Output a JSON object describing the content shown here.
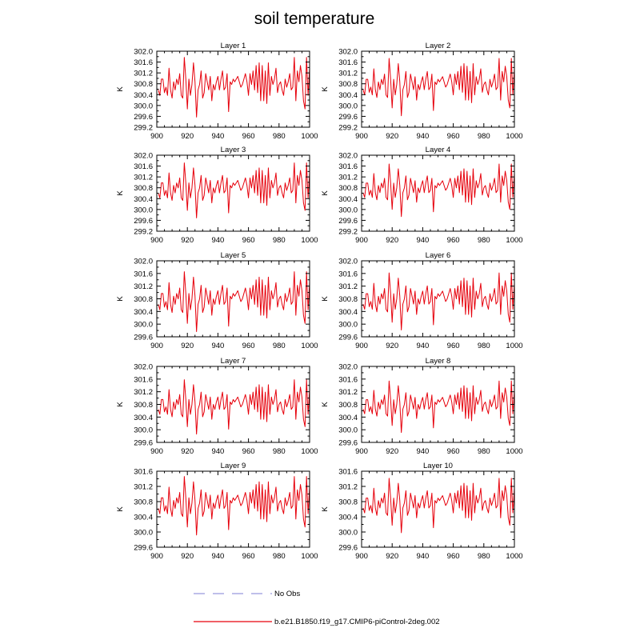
{
  "figure": {
    "title": "soil temperature",
    "legend": [
      {
        "label": "No Obs",
        "color": "#9999dd",
        "style": "dashed"
      },
      {
        "label": "b.e21.B1850.f19_g17.CMIP6-piControl-2deg.002",
        "color": "#e6000b",
        "style": "solid"
      }
    ]
  },
  "chart_data": {
    "type": "line",
    "xlim": [
      900,
      1000
    ],
    "xticks": [
      900,
      920,
      940,
      960,
      980,
      1000
    ],
    "ylabel": "K",
    "line_color": "#e6000b",
    "x": [
      901,
      902,
      903,
      904,
      905,
      906,
      907,
      908,
      909,
      910,
      911,
      912,
      913,
      914,
      915,
      916,
      917,
      918,
      919,
      920,
      921,
      922,
      923,
      924,
      925,
      926,
      927,
      928,
      929,
      930,
      931,
      932,
      933,
      934,
      935,
      936,
      937,
      938,
      939,
      940,
      941,
      942,
      943,
      944,
      945,
      946,
      947,
      948,
      949,
      950,
      951,
      952,
      953,
      954,
      955,
      956,
      957,
      958,
      959,
      960,
      961,
      962,
      963,
      964,
      965,
      966,
      967,
      968,
      969,
      970,
      971,
      972,
      973,
      974,
      975,
      976,
      977,
      978,
      979,
      980,
      981,
      982,
      983,
      984,
      985,
      986,
      987,
      988,
      989,
      990,
      991,
      992,
      993,
      994,
      995,
      996,
      997,
      998,
      999,
      1000
    ],
    "base_series": [
      300.6,
      300.4,
      301.0,
      301.0,
      300.5,
      300.7,
      300.4,
      301.4,
      300.6,
      300.3,
      300.9,
      300.6,
      301.0,
      300.8,
      301.2,
      300.4,
      300.3,
      301.8,
      301.0,
      299.9,
      301.0,
      300.4,
      300.8,
      301.6,
      300.9,
      299.6,
      300.6,
      300.8,
      301.3,
      300.3,
      300.5,
      301.2,
      300.9,
      300.6,
      301.1,
      300.2,
      300.8,
      300.6,
      300.9,
      301.1,
      300.6,
      301.0,
      301.3,
      300.6,
      300.7,
      301.2,
      299.8,
      300.9,
      300.8,
      301.0,
      300.9,
      301.0,
      301.1,
      300.9,
      300.7,
      300.8,
      301.0,
      301.2,
      300.9,
      300.4,
      301.2,
      300.8,
      301.3,
      300.6,
      301.5,
      300.5,
      301.6,
      300.2,
      301.5,
      300.2,
      301.3,
      300.1,
      301.6,
      300.4,
      301.1,
      300.8,
      301.0,
      301.4,
      300.5,
      300.8,
      300.9,
      300.6,
      300.4,
      301.0,
      300.7,
      300.9,
      301.2,
      300.6,
      300.7,
      301.8,
      300.2,
      301.3,
      300.9,
      301.5,
      301.1,
      300.2,
      299.9,
      301.8,
      300.4,
      301.4
    ],
    "panels": [
      {
        "title": "Layer 1",
        "ylim": [
          299.2,
          302.0
        ],
        "yticks": [
          "302.0",
          "301.6",
          "301.2",
          "300.8",
          "300.4",
          "300.0",
          "299.6",
          "299.2"
        ],
        "mean": 300.8,
        "amp": 1.0
      },
      {
        "title": "Layer 2",
        "ylim": [
          299.2,
          302.0
        ],
        "yticks": [
          "302.0",
          "301.6",
          "301.2",
          "300.8",
          "300.4",
          "300.0",
          "299.6",
          "299.2"
        ],
        "mean": 300.8,
        "amp": 0.96
      },
      {
        "title": "Layer 3",
        "ylim": [
          299.2,
          302.0
        ],
        "yticks": [
          "302.0",
          "301.6",
          "301.2",
          "300.8",
          "300.4",
          "300.0",
          "299.6",
          "299.2"
        ],
        "mean": 300.82,
        "amp": 0.92
      },
      {
        "title": "Layer 4",
        "ylim": [
          299.2,
          302.0
        ],
        "yticks": [
          "302.0",
          "301.6",
          "301.2",
          "300.8",
          "300.4",
          "300.0",
          "299.6",
          "299.2"
        ],
        "mean": 300.82,
        "amp": 0.88
      },
      {
        "title": "Layer 5",
        "ylim": [
          299.6,
          302.0
        ],
        "yticks": [
          "302.0",
          "301.6",
          "301.2",
          "300.8",
          "300.4",
          "300.0",
          "299.6"
        ],
        "mean": 300.82,
        "amp": 0.86
      },
      {
        "title": "Layer 6",
        "ylim": [
          299.6,
          302.0
        ],
        "yticks": [
          "302.0",
          "301.6",
          "301.2",
          "300.8",
          "300.4",
          "300.0",
          "299.6"
        ],
        "mean": 300.82,
        "amp": 0.82
      },
      {
        "title": "Layer 7",
        "ylim": [
          299.6,
          302.0
        ],
        "yticks": [
          "302.0",
          "301.6",
          "301.2",
          "300.8",
          "300.4",
          "300.0",
          "299.6"
        ],
        "mean": 300.82,
        "amp": 0.78
      },
      {
        "title": "Layer 8",
        "ylim": [
          299.6,
          302.0
        ],
        "yticks": [
          "302.0",
          "301.6",
          "301.2",
          "300.8",
          "300.4",
          "300.0",
          "299.6"
        ],
        "mean": 300.82,
        "amp": 0.74
      },
      {
        "title": "Layer 9",
        "ylim": [
          299.6,
          301.6
        ],
        "yticks": [
          "301.6",
          "301.2",
          "300.8",
          "300.4",
          "300.0",
          "299.6"
        ],
        "mean": 300.78,
        "amp": 0.7
      },
      {
        "title": "Layer 10",
        "ylim": [
          299.6,
          301.6
        ],
        "yticks": [
          "301.6",
          "301.2",
          "300.8",
          "300.4",
          "300.0",
          "299.6"
        ],
        "mean": 300.78,
        "amp": 0.65
      }
    ]
  }
}
